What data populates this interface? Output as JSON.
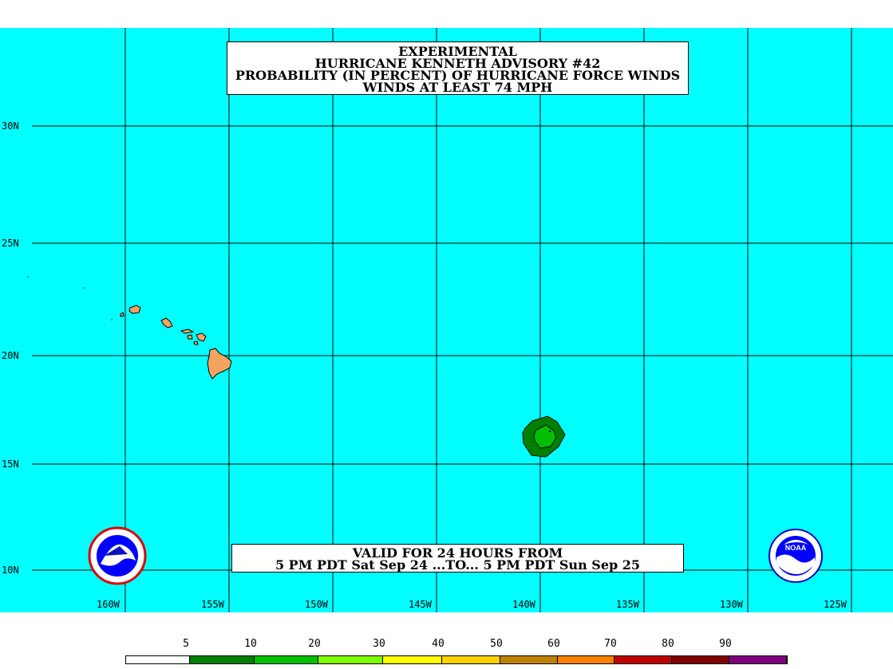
{
  "map": {
    "title_lines": [
      "EXPERIMENTAL",
      "HURRICANE KENNETH ADVISORY #42",
      "PROBABILITY (IN PERCENT) OF HURRICANE FORCE WINDS",
      "WINDS AT LEAST 74 MPH"
    ],
    "valid_lines": [
      "VALID FOR 24 HOURS FROM",
      "5 PM PDT Sat Sep 24 ...TO... 5 PM PDT Sun Sep 25"
    ],
    "lat_labels": [
      "30N",
      "25N",
      "20N",
      "15N",
      "10N"
    ],
    "lon_labels": [
      "160W",
      "155W",
      "150W",
      "145W",
      "140W",
      "135W",
      "130W",
      "125W"
    ],
    "ocean_color": "#00ffff",
    "land_color": "#f4a460",
    "logos": [
      "nws-logo-icon",
      "noaa-logo-icon"
    ],
    "noaa_text": "NOAA"
  },
  "legend": {
    "labels": [
      "5",
      "10",
      "20",
      "30",
      "40",
      "50",
      "60",
      "70",
      "80",
      "90"
    ],
    "colors": [
      "#ffffff",
      "#008000",
      "#00c000",
      "#80ff00",
      "#ffff00",
      "#ffd000",
      "#c08000",
      "#ff8000",
      "#c00000",
      "#800000",
      "#800080"
    ]
  }
}
